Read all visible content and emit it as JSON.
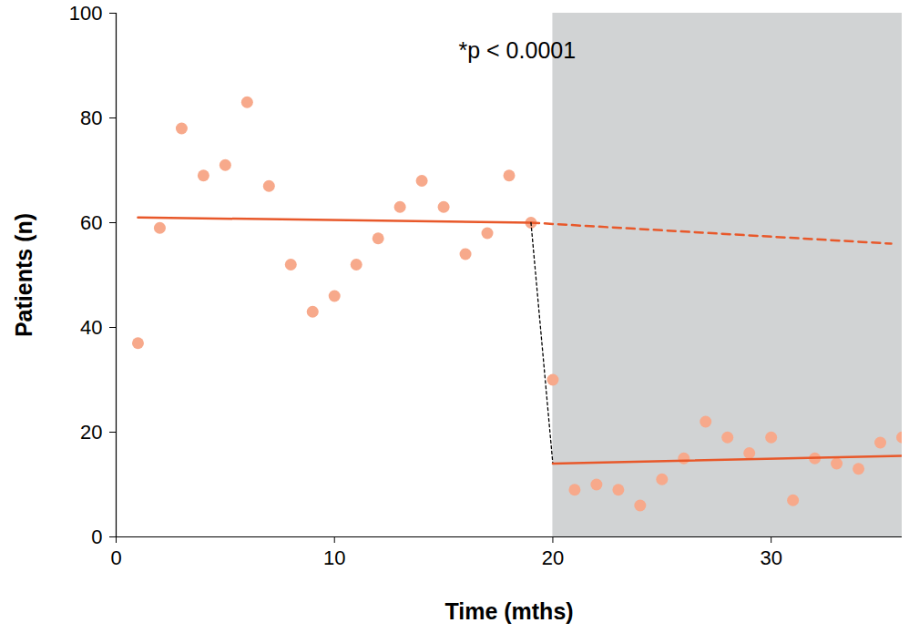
{
  "chart_data": {
    "type": "scatter",
    "x": [
      1,
      2,
      3,
      4,
      5,
      6,
      7,
      8,
      9,
      10,
      11,
      12,
      13,
      14,
      15,
      16,
      17,
      18,
      19,
      20,
      21,
      22,
      23,
      24,
      25,
      26,
      27,
      28,
      29,
      30,
      31,
      32,
      33,
      34,
      35,
      36
    ],
    "values": [
      37,
      59,
      78,
      69,
      71,
      83,
      67,
      52,
      43,
      46,
      52,
      57,
      63,
      68,
      63,
      54,
      58,
      69,
      60,
      30,
      9,
      10,
      9,
      6,
      11,
      15,
      22,
      19,
      16,
      19,
      7,
      15,
      14,
      13,
      18,
      19
    ],
    "color": "#f7a98b",
    "xlabel": "Time (mths)",
    "ylabel": "Patients (n)",
    "xlim": [
      0,
      36
    ],
    "ylim": [
      0,
      100
    ],
    "xticks": [
      0,
      10,
      20,
      30
    ],
    "yticks": [
      0,
      20,
      40,
      60,
      80,
      100
    ],
    "grid": false,
    "lines": [
      {
        "x": [
          1,
          19
        ],
        "values": [
          61,
          60
        ],
        "color": "#e8582a",
        "line_style": "solid"
      },
      {
        "x": [
          19,
          35.5
        ],
        "values": [
          60,
          56
        ],
        "color": "#e8582a",
        "line_style": "dashed"
      },
      {
        "x": [
          19,
          20
        ],
        "values": [
          60,
          14
        ],
        "color": "#000000",
        "line_style": "dotted"
      },
      {
        "x": [
          20,
          36
        ],
        "values": [
          14,
          15.5
        ],
        "color": "#e8582a",
        "line_style": "solid"
      }
    ],
    "shaded_region": {
      "x": [
        20,
        36
      ],
      "color": "#d1d3d4"
    },
    "annotations": [
      {
        "text": "*p < 0.0001"
      }
    ]
  }
}
